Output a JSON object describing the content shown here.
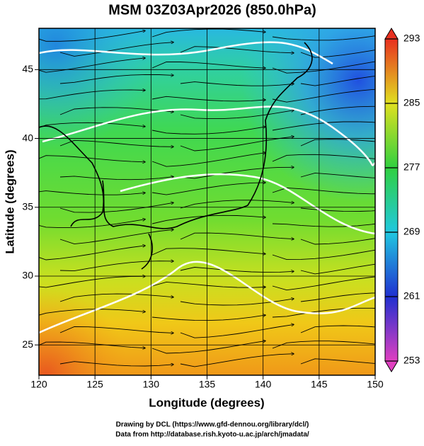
{
  "title": "MSM 03Z03Apr2026 (850.0hPa)",
  "x_axis": {
    "label": "Longitude (degrees)",
    "lim": [
      120,
      150
    ],
    "ticks": [
      120,
      125,
      130,
      135,
      140,
      145,
      150
    ]
  },
  "y_axis": {
    "label": "Latitude  (degrees)",
    "lim": [
      22.8,
      48
    ],
    "ticks": [
      25,
      30,
      35,
      40,
      45
    ]
  },
  "colorbar": {
    "lim": [
      253,
      293
    ],
    "ticks": [
      253,
      261,
      269,
      277,
      285,
      293
    ]
  },
  "credits": [
    "Drawing by DCL (https://www.gfd-dennou.org/library/dcl/)",
    "Data from http://database.rish.kyoto-u.ac.jp/arch/jmadata/"
  ]
}
